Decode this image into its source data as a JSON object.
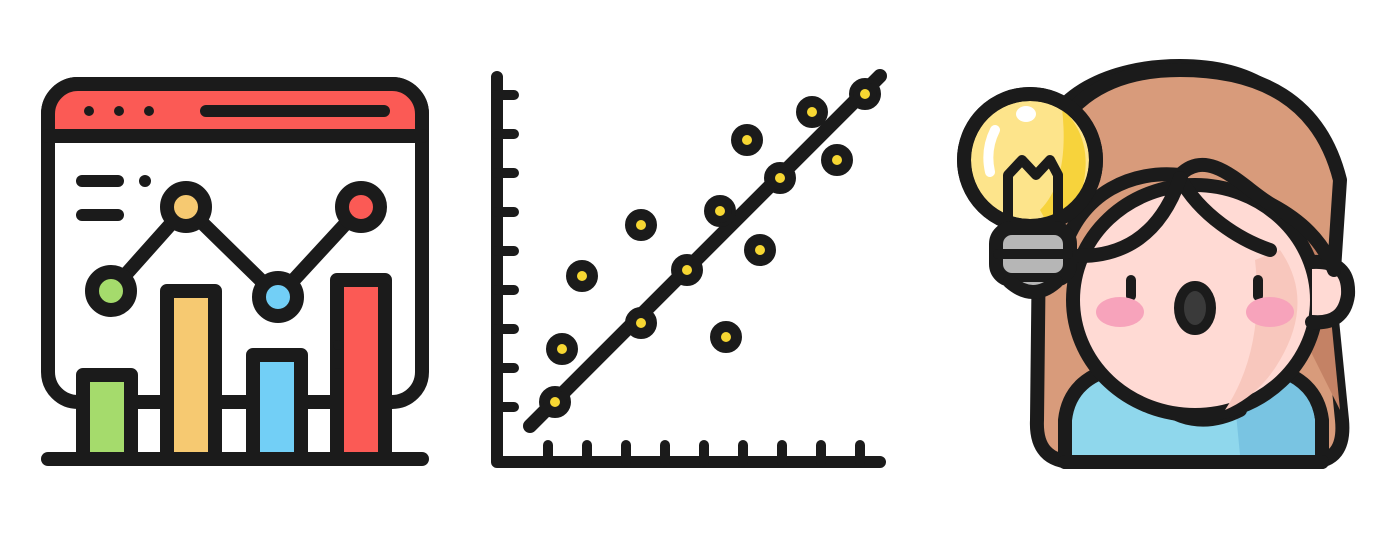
{
  "illustrations": [
    {
      "icon": "analytics-dashboard-icon"
    },
    {
      "icon": "scatter-regression-icon"
    },
    {
      "icon": "girl-idea-lightbulb-icon"
    }
  ],
  "colors": {
    "outline": "#1b1b1b",
    "window_bar": "#fb5a55",
    "green": "#a5db6c",
    "yellow": "#f6c971",
    "blue": "#72cff6",
    "red": "#fb5a55",
    "dot_fill": "#f7d732",
    "bulb": "#fde48b",
    "bulb_shade": "#f7d33c",
    "bulb_base": "#b6b6b6",
    "hair": "#d89b7b",
    "hair_shade": "#c48265",
    "skin": "#ffdad4",
    "skin_shade": "#f8c7bd",
    "cheek": "#f7a3bb",
    "shirt": "#8fd7ec",
    "shirt_shade": "#79c4e2"
  }
}
